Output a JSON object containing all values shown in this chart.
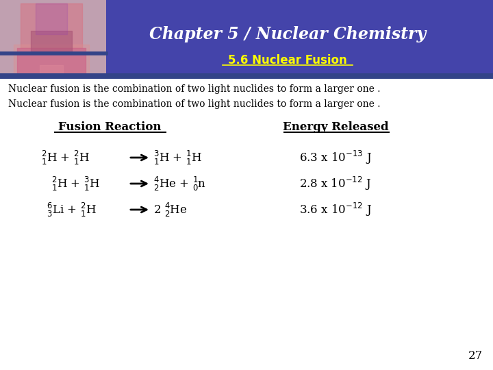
{
  "title": "Chapter 5 / Nuclear Chemistry",
  "subtitle": "5.6 Nuclear Fusion",
  "header_bg": "#4444aa",
  "subtitle_color": "#ffff00",
  "title_color": "#ffffff",
  "body_bg": "#ffffff",
  "body_text_color": "#000000",
  "intro_line1": "Nuclear fusion is the combination of two light nuclides to form a larger one .",
  "intro_line2": "Nuclear fusion is the combination of two light nuclides to form a larger one .",
  "col1_header": "Fusion Reaction",
  "col2_header": "Energy Released",
  "page_number": "27",
  "header_stripe_color": "#334488",
  "flask_bg": "#c0a0b0"
}
